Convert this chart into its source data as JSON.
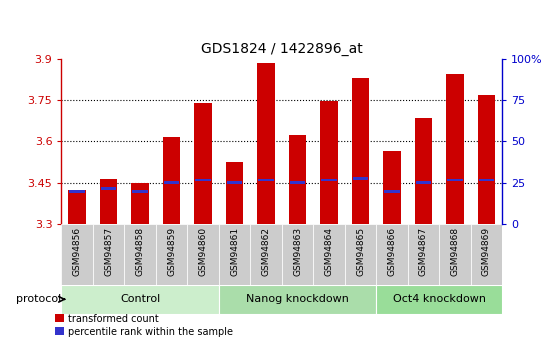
{
  "title": "GDS1824 / 1422896_at",
  "samples": [
    "GSM94856",
    "GSM94857",
    "GSM94858",
    "GSM94859",
    "GSM94860",
    "GSM94861",
    "GSM94862",
    "GSM94863",
    "GSM94864",
    "GSM94865",
    "GSM94866",
    "GSM94867",
    "GSM94868",
    "GSM94869"
  ],
  "bar_values": [
    3.425,
    3.465,
    3.45,
    3.615,
    3.74,
    3.525,
    3.885,
    3.625,
    3.745,
    3.83,
    3.565,
    3.685,
    3.845,
    3.77
  ],
  "bar_bottom": 3.3,
  "blue_marker_values": [
    3.415,
    3.425,
    3.415,
    3.445,
    3.455,
    3.445,
    3.455,
    3.445,
    3.455,
    3.46,
    3.415,
    3.445,
    3.455,
    3.455
  ],
  "bar_color": "#cc0000",
  "blue_color": "#3333cc",
  "ylim_left": [
    3.3,
    3.9
  ],
  "ylim_right": [
    0,
    100
  ],
  "yticks_left": [
    3.3,
    3.45,
    3.6,
    3.75,
    3.9
  ],
  "yticks_right": [
    0,
    25,
    50,
    75,
    100
  ],
  "ytick_labels_right": [
    "0",
    "25",
    "50",
    "75",
    "100%"
  ],
  "groups": [
    {
      "label": "Control",
      "start": 0,
      "end": 5,
      "color": "#cceecc"
    },
    {
      "label": "Nanog knockdown",
      "start": 5,
      "end": 10,
      "color": "#aaddaa"
    },
    {
      "label": "Oct4 knockdown",
      "start": 10,
      "end": 14,
      "color": "#99dd99"
    }
  ],
  "protocol_label": "protocol",
  "legend_items": [
    {
      "color": "#cc0000",
      "label": "transformed count"
    },
    {
      "color": "#3333cc",
      "label": "percentile rank within the sample"
    }
  ],
  "tick_color_left": "#cc0000",
  "tick_color_right": "#0000cc",
  "bar_width": 0.55,
  "xtick_bg": "#cccccc",
  "plot_bg": "white"
}
